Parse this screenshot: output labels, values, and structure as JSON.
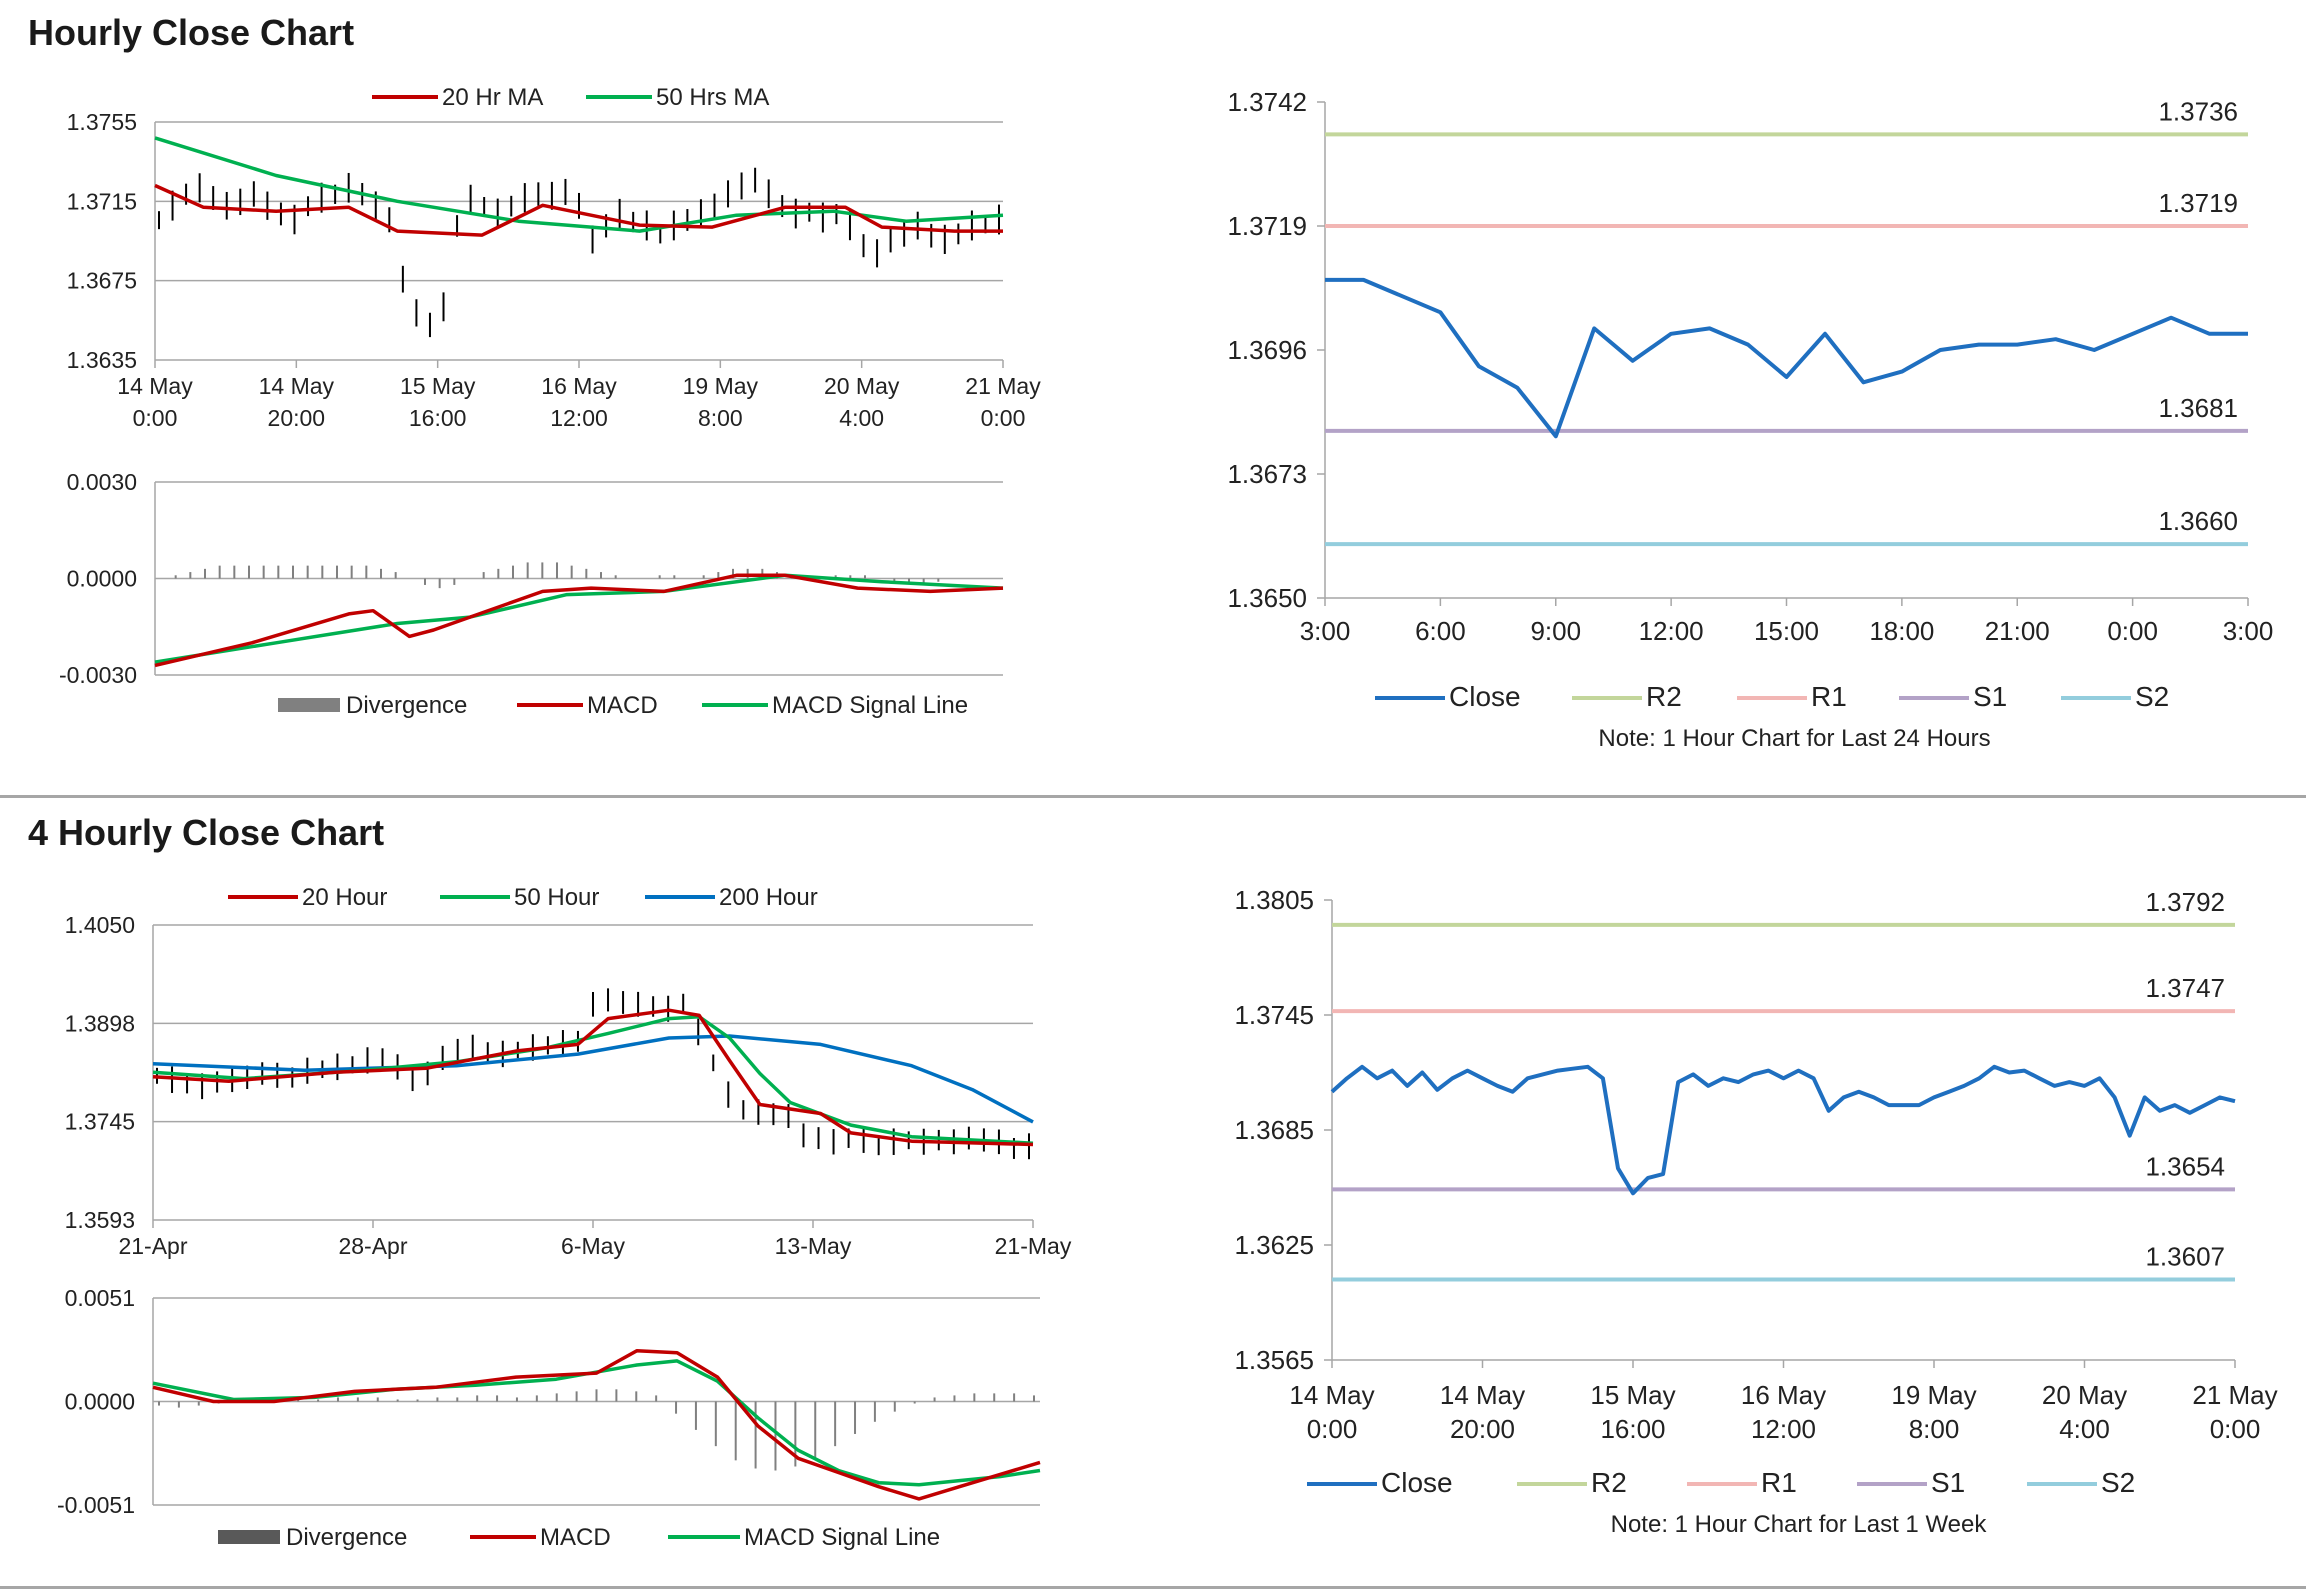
{
  "sections": [
    {
      "title": "Hourly Close Chart"
    },
    {
      "title": "4 Hourly Close Chart"
    }
  ],
  "chart_data": [
    {
      "type": "line",
      "id": "hourly-price",
      "legend": [
        "20 Hr MA",
        "50 Hrs MA"
      ],
      "y_ticks": [
        "1.3755",
        "1.3715",
        "1.3675",
        "1.3635"
      ],
      "ylim": [
        1.3635,
        1.3755
      ],
      "x_ticks": [
        [
          "14 May",
          "0:00"
        ],
        [
          "14 May",
          "20:00"
        ],
        [
          "15 May",
          "16:00"
        ],
        [
          "16 May",
          "12:00"
        ],
        [
          "19 May",
          "8:00"
        ],
        [
          "20 May",
          "4:00"
        ],
        [
          "21 May",
          "0:00"
        ]
      ],
      "ohlc_close": [
        1.3705,
        1.3712,
        1.3718,
        1.3721,
        1.3716,
        1.3712,
        1.3714,
        1.3718,
        1.3712,
        1.3708,
        1.3705,
        1.3712,
        1.3716,
        1.3718,
        1.3721,
        1.3718,
        1.3712,
        1.3705,
        1.3675,
        1.3658,
        1.3652,
        1.3661,
        1.3702,
        1.3715,
        1.3712,
        1.3708,
        1.3712,
        1.3716,
        1.3718,
        1.3717,
        1.3719,
        1.3712,
        1.3695,
        1.3702,
        1.3708,
        1.3704,
        1.3702,
        1.3698,
        1.3702,
        1.3705,
        1.3708,
        1.3712,
        1.3718,
        1.3722,
        1.3725,
        1.3718,
        1.3712,
        1.3708,
        1.3709,
        1.3706,
        1.3708,
        1.3702,
        1.3692,
        1.3688,
        1.3695,
        1.3698,
        1.3702,
        1.3697,
        1.3695,
        1.3698,
        1.3702,
        1.3703,
        1.3705
      ],
      "ma20": [
        [
          0,
          1.3723
        ],
        [
          4,
          1.3712
        ],
        [
          10,
          1.371
        ],
        [
          16,
          1.3712
        ],
        [
          20,
          1.37
        ],
        [
          27,
          1.3698
        ],
        [
          32,
          1.3713
        ],
        [
          40,
          1.3703
        ],
        [
          46,
          1.3702
        ],
        [
          52,
          1.3712
        ],
        [
          57,
          1.3712
        ],
        [
          60,
          1.3702
        ],
        [
          66,
          1.37
        ],
        [
          70,
          1.37
        ]
      ],
      "ma50": [
        [
          0,
          1.3747
        ],
        [
          10,
          1.3728
        ],
        [
          20,
          1.3715
        ],
        [
          30,
          1.3705
        ],
        [
          40,
          1.37
        ],
        [
          48,
          1.3708
        ],
        [
          56,
          1.371
        ],
        [
          62,
          1.3705
        ],
        [
          70,
          1.3708
        ]
      ]
    },
    {
      "type": "bar",
      "id": "hourly-macd",
      "legend": [
        "Divergence",
        "MACD",
        "MACD Signal Line"
      ],
      "y_ticks": [
        "0.0030",
        "0.0000",
        "-0.0030"
      ],
      "ylim": [
        -0.003,
        0.003
      ],
      "divergence": [
        0.0,
        0.0001,
        0.0002,
        0.0003,
        0.0004,
        0.0004,
        0.0004,
        0.0004,
        0.0004,
        0.0004,
        0.0004,
        0.0004,
        0.0004,
        0.0004,
        0.0004,
        0.0003,
        0.0002,
        0.0,
        -0.0002,
        -0.0003,
        -0.0002,
        0.0,
        0.0002,
        0.0003,
        0.0004,
        0.0005,
        0.0005,
        0.0005,
        0.0004,
        0.0003,
        0.0002,
        0.0001,
        0.0,
        0.0,
        0.0001,
        0.0001,
        0.0,
        0.0001,
        0.0002,
        0.0003,
        0.0003,
        0.0003,
        0.0002,
        0.0001,
        0.0,
        0.0,
        0.0001,
        0.0001,
        0.0001,
        0.0,
        -0.0001,
        -0.0001,
        -0.0002,
        -0.0001,
        0.0,
        0.0,
        0.0,
        0.0
      ],
      "macd": [
        [
          0,
          -0.0027
        ],
        [
          8,
          -0.002
        ],
        [
          16,
          -0.0011
        ],
        [
          18,
          -0.001
        ],
        [
          21,
          -0.0018
        ],
        [
          23,
          -0.0016
        ],
        [
          26,
          -0.0012
        ],
        [
          32,
          -0.0004
        ],
        [
          36,
          -0.0003
        ],
        [
          42,
          -0.0004
        ],
        [
          48,
          0.0001
        ],
        [
          52,
          0.0001
        ],
        [
          58,
          -0.0003
        ],
        [
          64,
          -0.0004
        ],
        [
          70,
          -0.0003
        ]
      ],
      "signal": [
        [
          0,
          -0.0026
        ],
        [
          10,
          -0.002
        ],
        [
          20,
          -0.0014
        ],
        [
          26,
          -0.0012
        ],
        [
          34,
          -0.0005
        ],
        [
          42,
          -0.0004
        ],
        [
          52,
          0.0001
        ],
        [
          60,
          -0.0001
        ],
        [
          70,
          -0.0003
        ]
      ]
    },
    {
      "type": "line",
      "id": "hourly-pivots",
      "y_ticks": [
        "1.3742",
        "1.3719",
        "1.3696",
        "1.3673",
        "1.3650"
      ],
      "ylim": [
        1.365,
        1.3742
      ],
      "x_ticks": [
        "3:00",
        "6:00",
        "9:00",
        "12:00",
        "15:00",
        "18:00",
        "21:00",
        "0:00",
        "3:00"
      ],
      "close": [
        [
          0,
          1.3709
        ],
        [
          1,
          1.3709
        ],
        [
          3,
          1.3703
        ],
        [
          4,
          1.3693
        ],
        [
          5,
          1.3689
        ],
        [
          6,
          1.368
        ],
        [
          7,
          1.37
        ],
        [
          8,
          1.3694
        ],
        [
          9,
          1.3699
        ],
        [
          10,
          1.37
        ],
        [
          11,
          1.3697
        ],
        [
          12,
          1.3691
        ],
        [
          13,
          1.3699
        ],
        [
          14,
          1.369
        ],
        [
          15,
          1.3692
        ],
        [
          16,
          1.3696
        ],
        [
          17,
          1.3697
        ],
        [
          18,
          1.3697
        ],
        [
          19,
          1.3698
        ],
        [
          20,
          1.3696
        ],
        [
          22,
          1.3702
        ],
        [
          23,
          1.3699
        ],
        [
          24,
          1.3699
        ]
      ],
      "levels": [
        {
          "name": "R2",
          "value": 1.3736,
          "label": "1.3736",
          "color": "#c3d69b"
        },
        {
          "name": "R1",
          "value": 1.3719,
          "label": "1.3719",
          "color": "#f2b6b4"
        },
        {
          "name": "S1",
          "value": 1.3681,
          "label": "1.3681",
          "color": "#b3a2c7"
        },
        {
          "name": "S2",
          "value": 1.366,
          "label": "1.3660",
          "color": "#93cddd"
        }
      ],
      "legend": [
        "Close",
        "R2",
        "R1",
        "S1",
        "S2"
      ],
      "note": "Note: 1 Hour Chart for Last 24 Hours"
    },
    {
      "type": "line",
      "id": "four-hourly-price",
      "legend": [
        "20 Hour",
        "50 Hour",
        "200 Hour"
      ],
      "y_ticks": [
        "1.4050",
        "1.3898",
        "1.3745",
        "1.3593"
      ],
      "ylim": [
        1.3593,
        1.405
      ],
      "x_ticks": [
        "21-Apr",
        "28-Apr",
        "6-May",
        "13-May",
        "21-May"
      ],
      "ohlc_close": [
        1.3815,
        1.3808,
        1.3802,
        1.3798,
        1.3805,
        1.3808,
        1.3812,
        1.3818,
        1.3815,
        1.3812,
        1.3822,
        1.3825,
        1.3828,
        1.3832,
        1.3838,
        1.3842,
        1.3828,
        1.3808,
        1.3818,
        1.3842,
        1.3855,
        1.3858,
        1.3852,
        1.3848,
        1.3855,
        1.3858,
        1.3862,
        1.3865,
        1.3868,
        1.3925,
        1.3932,
        1.3928,
        1.3925,
        1.3922,
        1.3918,
        1.3928,
        1.3882,
        1.3835,
        1.3785,
        1.3762,
        1.3758,
        1.3755,
        1.3752,
        1.3722,
        1.3718,
        1.3712,
        1.3718,
        1.3715,
        1.3705,
        1.3712,
        1.3715,
        1.3712,
        1.3715,
        1.3712,
        1.3718,
        1.3715,
        1.3712,
        1.3702,
        1.3705
      ],
      "ma20": [
        [
          0,
          1.3815
        ],
        [
          5,
          1.3808
        ],
        [
          12,
          1.3822
        ],
        [
          18,
          1.3828
        ],
        [
          24,
          1.3855
        ],
        [
          28,
          1.3865
        ],
        [
          30,
          1.3905
        ],
        [
          34,
          1.3918
        ],
        [
          36,
          1.391
        ],
        [
          38,
          1.384
        ],
        [
          40,
          1.3772
        ],
        [
          44,
          1.3758
        ],
        [
          46,
          1.3728
        ],
        [
          50,
          1.3715
        ],
        [
          58,
          1.371
        ]
      ],
      "ma50": [
        [
          0,
          1.3822
        ],
        [
          6,
          1.3812
        ],
        [
          14,
          1.3825
        ],
        [
          20,
          1.3838
        ],
        [
          26,
          1.386
        ],
        [
          30,
          1.3882
        ],
        [
          34,
          1.3905
        ],
        [
          36,
          1.3908
        ],
        [
          38,
          1.3875
        ],
        [
          40,
          1.382
        ],
        [
          42,
          1.3775
        ],
        [
          46,
          1.374
        ],
        [
          50,
          1.3722
        ],
        [
          58,
          1.3712
        ]
      ],
      "ma200": [
        [
          0,
          1.3835
        ],
        [
          10,
          1.3825
        ],
        [
          20,
          1.3832
        ],
        [
          28,
          1.385
        ],
        [
          34,
          1.3875
        ],
        [
          38,
          1.3878
        ],
        [
          44,
          1.3865
        ],
        [
          50,
          1.3832
        ],
        [
          54,
          1.3795
        ],
        [
          58,
          1.3745
        ]
      ]
    },
    {
      "type": "bar",
      "id": "four-hourly-macd",
      "legend": [
        "Divergence",
        "MACD",
        "MACD Signal Line"
      ],
      "y_ticks": [
        "0.0051",
        "0.0000",
        "-0.0051"
      ],
      "ylim": [
        -0.0051,
        0.0051
      ],
      "divergence": [
        -0.0002,
        -0.0003,
        -0.0002,
        -0.0001,
        0.0,
        0.0001,
        0.0002,
        0.0001,
        0.0001,
        0.0002,
        0.0002,
        0.0002,
        0.0001,
        0.0001,
        0.0002,
        0.0002,
        0.0003,
        0.0003,
        0.0002,
        0.0003,
        0.0004,
        0.0005,
        0.0006,
        0.0006,
        0.0005,
        0.0003,
        -0.0006,
        -0.0014,
        -0.0022,
        -0.0029,
        -0.0033,
        -0.0034,
        -0.0032,
        -0.0028,
        -0.0022,
        -0.0016,
        -0.001,
        -0.0005,
        -0.0001,
        0.0002,
        0.0003,
        0.0004,
        0.0004,
        0.0004,
        0.0003
      ],
      "macd": [
        [
          0,
          0.0007
        ],
        [
          3,
          0.0
        ],
        [
          6,
          0.0
        ],
        [
          10,
          0.0005
        ],
        [
          14,
          0.0007
        ],
        [
          18,
          0.0012
        ],
        [
          22,
          0.0014
        ],
        [
          24,
          0.0025
        ],
        [
          26,
          0.0024
        ],
        [
          28,
          0.0012
        ],
        [
          30,
          -0.0012
        ],
        [
          32,
          -0.0028
        ],
        [
          34,
          -0.0035
        ],
        [
          36,
          -0.0042
        ],
        [
          38,
          -0.0048
        ],
        [
          40,
          -0.0042
        ],
        [
          42,
          -0.0036
        ],
        [
          44,
          -0.003
        ]
      ],
      "signal": [
        [
          0,
          0.0009
        ],
        [
          4,
          0.0001
        ],
        [
          8,
          0.0002
        ],
        [
          12,
          0.0006
        ],
        [
          16,
          0.0008
        ],
        [
          20,
          0.0011
        ],
        [
          24,
          0.0018
        ],
        [
          26,
          0.002
        ],
        [
          28,
          0.001
        ],
        [
          30,
          -0.0008
        ],
        [
          32,
          -0.0024
        ],
        [
          34,
          -0.0034
        ],
        [
          36,
          -0.004
        ],
        [
          38,
          -0.0041
        ],
        [
          40,
          -0.0039
        ],
        [
          42,
          -0.0037
        ],
        [
          44,
          -0.0034
        ]
      ]
    },
    {
      "type": "line",
      "id": "four-hourly-pivots",
      "y_ticks": [
        "1.3805",
        "1.3745",
        "1.3685",
        "1.3625",
        "1.3565"
      ],
      "ylim": [
        1.3565,
        1.3805
      ],
      "x_ticks": [
        [
          "14 May",
          "0:00"
        ],
        [
          "14 May",
          "20:00"
        ],
        [
          "15 May",
          "16:00"
        ],
        [
          "16 May",
          "12:00"
        ],
        [
          "19 May",
          "8:00"
        ],
        [
          "20 May",
          "4:00"
        ],
        [
          "21 May",
          "0:00"
        ]
      ],
      "close": [
        1.3705,
        1.3712,
        1.3718,
        1.3712,
        1.3716,
        1.3708,
        1.3715,
        1.3706,
        1.3712,
        1.3716,
        1.3712,
        1.3708,
        1.3705,
        1.3712,
        1.3714,
        1.3716,
        1.3717,
        1.3718,
        1.3712,
        1.3665,
        1.3652,
        1.366,
        1.3662,
        1.371,
        1.3714,
        1.3708,
        1.3712,
        1.371,
        1.3714,
        1.3716,
        1.3712,
        1.3716,
        1.3712,
        1.3695,
        1.3702,
        1.3705,
        1.3702,
        1.3698,
        1.3698,
        1.3698,
        1.3702,
        1.3705,
        1.3708,
        1.3712,
        1.3718,
        1.3715,
        1.3716,
        1.3712,
        1.3708,
        1.371,
        1.3708,
        1.3712,
        1.3702,
        1.3682,
        1.3702,
        1.3695,
        1.3698,
        1.3694,
        1.3698,
        1.3702,
        1.37
      ],
      "levels": [
        {
          "name": "R2",
          "value": 1.3792,
          "label": "1.3792",
          "color": "#c3d69b"
        },
        {
          "name": "R1",
          "value": 1.3747,
          "label": "1.3747",
          "color": "#f2b6b4"
        },
        {
          "name": "S1",
          "value": 1.3654,
          "label": "1.3654",
          "color": "#b3a2c7"
        },
        {
          "name": "S2",
          "value": 1.3607,
          "label": "1.3607",
          "color": "#93cddd"
        }
      ],
      "legend": [
        "Close",
        "R2",
        "R1",
        "S1",
        "S2"
      ],
      "note": "Note: 1 Hour Chart for Last 1 Week"
    }
  ],
  "colors": {
    "red": "#c00000",
    "green": "#00b050",
    "blue": "#0070c0",
    "close": "#1f6fc0",
    "divergence": "#808080",
    "grid": "#a6a6a6"
  }
}
